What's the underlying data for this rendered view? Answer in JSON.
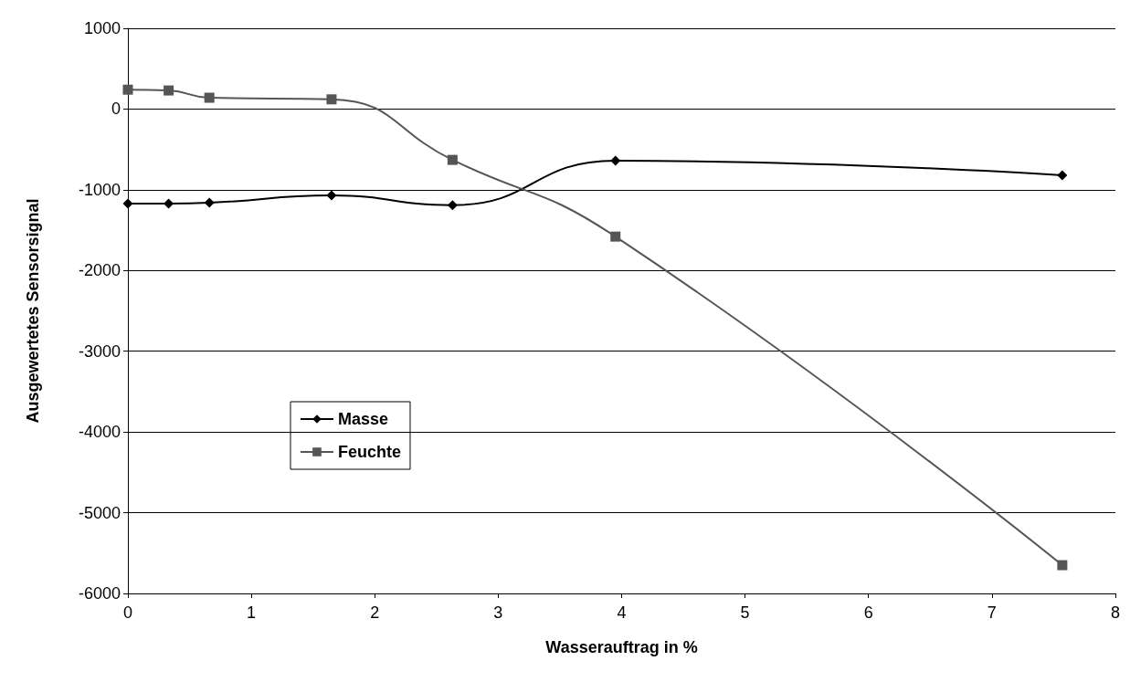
{
  "chart_data": {
    "type": "line",
    "xlabel": "Wasserauftrag in %",
    "ylabel": "Ausgewertetes Sensorsignal",
    "xlim": [
      0,
      8
    ],
    "xticks": [
      0,
      1,
      2,
      3,
      4,
      5,
      6,
      7,
      8
    ],
    "ylim": [
      -6000,
      1000
    ],
    "yticks": [
      -6000,
      -5000,
      -4000,
      -3000,
      -2000,
      -1000,
      0,
      1000
    ],
    "grid": "y",
    "legend": "left",
    "line_style": "solid",
    "series": [
      {
        "name": "Masse",
        "color": "#000000",
        "marker": "diamond",
        "x": [
          0,
          0.33,
          0.66,
          1.65,
          2.63,
          3.95,
          7.57
        ],
        "values": [
          -1170,
          -1170,
          -1160,
          -1070,
          -1190,
          -640,
          -820
        ]
      },
      {
        "name": "Feuchte",
        "color": "#555555",
        "marker": "square",
        "x": [
          0,
          0.33,
          0.66,
          1.65,
          2.63,
          3.95,
          7.57
        ],
        "values": [
          240,
          230,
          140,
          120,
          -630,
          -1580,
          -5650
        ]
      }
    ]
  }
}
